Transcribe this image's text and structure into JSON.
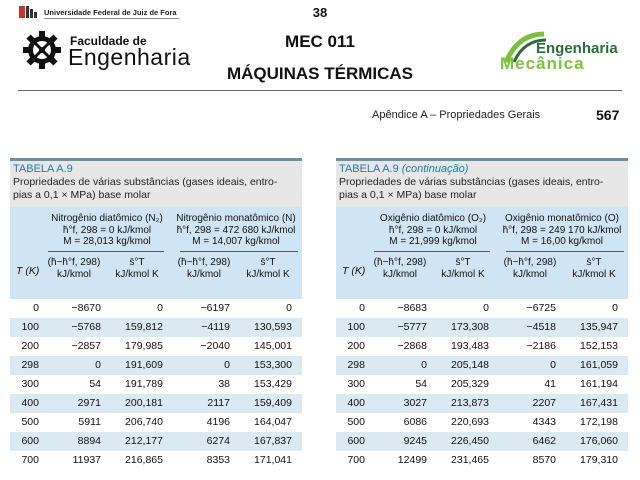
{
  "header": {
    "university": "Universidade Federal de Juiz de Fora",
    "page_number": "38",
    "faculty_line1": "Faculdade de",
    "faculty_line2": "Engenharia",
    "course": "MEC 011",
    "subject": "MÁQUINAS TÉRMICAS",
    "dept_line1": "Engenharia",
    "dept_line2": "Mecânica",
    "appendix": "Apêndice A – Propriedades Gerais",
    "book_page": "567"
  },
  "tables": [
    {
      "title": "TABELA A.9",
      "title_suffix": "",
      "desc1": "Propriedades de várias substâncias (gases ideais, entro-",
      "desc2": "pias a 0,1 × MPa) base molar",
      "gas1": {
        "name": "Nitrogênio diatômico (N₂)",
        "hf": "h̄°f, 298 = 0 kJ/kmol",
        "m": "M = 28,013 kg/kmol"
      },
      "gas2": {
        "name": "Nitrogênio monatômico (N)",
        "hf": "h̄°f, 298 = 472 680 kJ/kmol",
        "m": "M = 14,007 kg/kmol"
      },
      "col_h": "(h̄−h̄°f, 298)",
      "col_s": "s̄°T",
      "unit_h": "kJ/kmol",
      "unit_s": "kJ/kmol K",
      "tk": "T (K)",
      "rows": [
        [
          "0",
          "−8670",
          "0",
          "−6197",
          "0"
        ],
        [
          "100",
          "−5768",
          "159,812",
          "−4119",
          "130,593"
        ],
        [
          "200",
          "−2857",
          "179,985",
          "−2040",
          "145,001"
        ],
        [
          "298",
          "0",
          "191,609",
          "0",
          "153,300"
        ],
        [
          "300",
          "54",
          "191,789",
          "38",
          "153,429"
        ],
        [
          "400",
          "2971",
          "200,181",
          "2117",
          "159,409"
        ],
        [
          "500",
          "5911",
          "206,740",
          "4196",
          "164,047"
        ],
        [
          "600",
          "8894",
          "212,177",
          "6274",
          "167,837"
        ],
        [
          "700",
          "11937",
          "216,865",
          "8353",
          "171,041"
        ]
      ]
    },
    {
      "title": "TABELA A.9",
      "title_suffix": "(continuação)",
      "desc1": "Propriedades de várias substâncias (gases ideais, entro-",
      "desc2": "pias a 0,1 × MPa) base molar",
      "gas1": {
        "name": "Oxigênio diatômico (O₂)",
        "hf": "h̄°f, 298 = 0 kJ/kmol",
        "m": "M = 21,999 kg/kmol"
      },
      "gas2": {
        "name": "Oxigênio monatômico (O)",
        "hf": "h̄°f, 298 = 249 170 kJ/kmol",
        "m": "M = 16,00 kg/kmol"
      },
      "col_h": "(h̄−h̄°f, 298)",
      "col_s": "s̄°T",
      "unit_h": "kJ/kmol",
      "unit_s": "kJ/kmol K",
      "tk": "T (K)",
      "rows": [
        [
          "0",
          "−8683",
          "0",
          "−6725",
          "0"
        ],
        [
          "100",
          "−5777",
          "173,308",
          "−4518",
          "135,947"
        ],
        [
          "200",
          "−2868",
          "193,483",
          "−2186",
          "152,153"
        ],
        [
          "298",
          "0",
          "205,148",
          "0",
          "161,059"
        ],
        [
          "300",
          "54",
          "205,329",
          "41",
          "161,194"
        ],
        [
          "400",
          "3027",
          "213,873",
          "2207",
          "167,431"
        ],
        [
          "500",
          "6086",
          "220,693",
          "4343",
          "172,198"
        ],
        [
          "600",
          "9245",
          "226,450",
          "6462",
          "176,060"
        ],
        [
          "700",
          "12499",
          "231,465",
          "8570",
          "179,310"
        ]
      ]
    }
  ]
}
